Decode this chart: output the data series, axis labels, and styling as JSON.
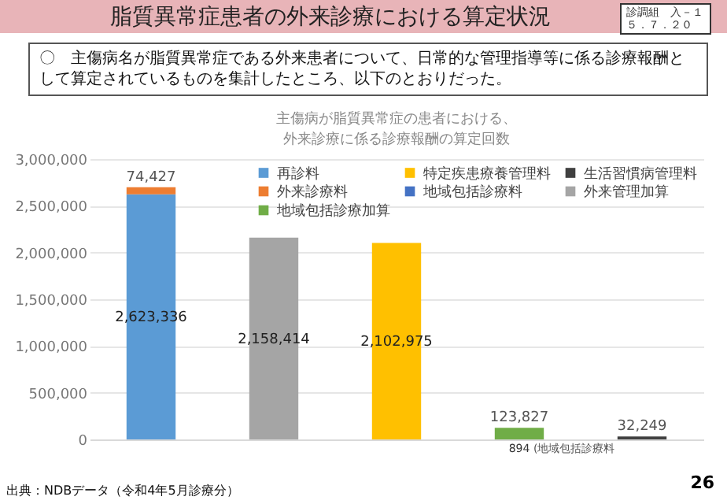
{
  "chart_data": {
    "type": "bar",
    "title": "脂質異常症患者の外来診療における算定状況",
    "subtitle": "〇　主傷病名が脂質異常症である外来患者について、日常的な管理指導等に係る診療報酬として算定されているものを集計したところ、以下のとおりだった。",
    "xlabel": "主傷病が脂質異常症の患者における、外来診療に係る診療報酬の算定回数",
    "categories": [
      null,
      null,
      null,
      null,
      null
    ],
    "stacked": true,
    "series": [
      {
        "name": "再診料",
        "color": "#5b9bd5",
        "values": [
          2623336,
          null,
          null,
          null,
          null
        ],
        "value_labels": [
          "2,623,336",
          null,
          null,
          null,
          null
        ]
      },
      {
        "name": "外来診療料",
        "color": "#ed7d31",
        "values": [
          74427,
          null,
          null,
          null,
          null
        ],
        "value_labels": [
          "74,427",
          null,
          null,
          null,
          null
        ]
      },
      {
        "name": "外来管理加算",
        "color": "#a5a5a5",
        "values": [
          null,
          2158414,
          null,
          null,
          null
        ],
        "value_labels": [
          null,
          "2,158,414",
          null,
          null,
          null
        ]
      },
      {
        "name": "特定疾患療養管理料",
        "color": "#ffc000",
        "values": [
          null,
          null,
          2102975,
          null,
          null
        ],
        "value_labels": [
          null,
          null,
          "2,102,975",
          null,
          null
        ]
      },
      {
        "name": "地域包括診療料",
        "color": "#4472c4",
        "values": [
          null,
          null,
          null,
          894,
          null
        ],
        "value_labels": [
          null,
          null,
          null,
          "894",
          null
        ]
      },
      {
        "name": "地域包括診療加算",
        "color": "#70ad47",
        "values": [
          null,
          null,
          null,
          123827,
          null
        ],
        "value_labels": [
          null,
          null,
          null,
          "123,827",
          null
        ]
      },
      {
        "name": "生活習慣病管理料",
        "color": "#404040",
        "values": [
          null,
          null,
          null,
          null,
          32249
        ],
        "value_labels": [
          null,
          null,
          null,
          null,
          "32,249"
        ]
      }
    ],
    "ylim": [
      0,
      3000000
    ],
    "yticks": [
      0,
      {
        "value": 500000,
        "label": "500,000"
      },
      {
        "value": 1000000,
        "label": "1,000,000"
      },
      {
        "value": 1500000,
        "label": "1,500,000"
      },
      {
        "value": 2000000,
        "label": "2,000,000"
      },
      {
        "value": 2500000,
        "label": "2,500,000"
      },
      {
        "value": 3000000,
        "label": "3,000,000"
      }
    ],
    "grid": "y",
    "legend": "top right",
    "annotations": [
      "診調組　入－１５．７．２０",
      "(地域包括診療料",
      "出典：NDBデータ（令和4年5月診療分）",
      "26"
    ]
  }
}
